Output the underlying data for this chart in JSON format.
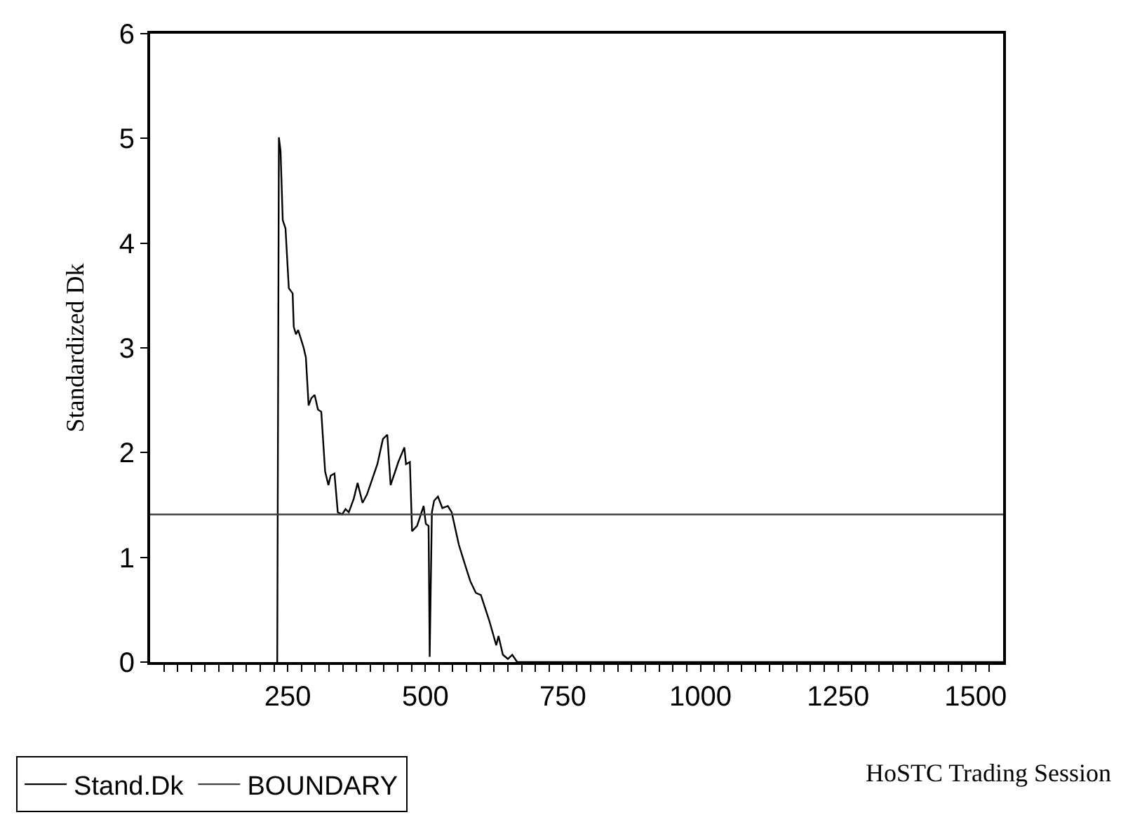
{
  "chart_data": {
    "type": "line",
    "xlabel": "HoSTC Trading Session",
    "ylabel": "Standardized Dk",
    "xlim": [
      0,
      1550
    ],
    "ylim": [
      0,
      6
    ],
    "yticks": [
      0,
      1,
      2,
      3,
      4,
      5,
      6
    ],
    "xticks": [
      {
        "value": 25,
        "label": null
      },
      {
        "value": 50,
        "label": null
      },
      {
        "value": 75,
        "label": null
      },
      {
        "value": 100,
        "label": null
      },
      {
        "value": 125,
        "label": null
      },
      {
        "value": 150,
        "label": null
      },
      {
        "value": 175,
        "label": null
      },
      {
        "value": 200,
        "label": null
      },
      {
        "value": 225,
        "label": null
      },
      250,
      {
        "value": 275,
        "label": null
      },
      {
        "value": 300,
        "label": null
      },
      {
        "value": 325,
        "label": null
      },
      {
        "value": 350,
        "label": null
      },
      {
        "value": 375,
        "label": null
      },
      {
        "value": 400,
        "label": null
      },
      {
        "value": 425,
        "label": null
      },
      {
        "value": 450,
        "label": null
      },
      {
        "value": 475,
        "label": null
      },
      500,
      {
        "value": 525,
        "label": null
      },
      {
        "value": 550,
        "label": null
      },
      {
        "value": 575,
        "label": null
      },
      {
        "value": 600,
        "label": null
      },
      {
        "value": 625,
        "label": null
      },
      {
        "value": 650,
        "label": null
      },
      {
        "value": 675,
        "label": null
      },
      {
        "value": 700,
        "label": null
      },
      {
        "value": 725,
        "label": null
      },
      750,
      {
        "value": 775,
        "label": null
      },
      {
        "value": 800,
        "label": null
      },
      {
        "value": 825,
        "label": null
      },
      {
        "value": 850,
        "label": null
      },
      {
        "value": 875,
        "label": null
      },
      {
        "value": 900,
        "label": null
      },
      {
        "value": 925,
        "label": null
      },
      {
        "value": 950,
        "label": null
      },
      {
        "value": 975,
        "label": null
      },
      1000,
      {
        "value": 1025,
        "label": null
      },
      {
        "value": 1050,
        "label": null
      },
      {
        "value": 1075,
        "label": null
      },
      {
        "value": 1100,
        "label": null
      },
      {
        "value": 1125,
        "label": null
      },
      {
        "value": 1150,
        "label": null
      },
      {
        "value": 1175,
        "label": null
      },
      {
        "value": 1200,
        "label": null
      },
      {
        "value": 1225,
        "label": null
      },
      1250,
      {
        "value": 1275,
        "label": null
      },
      {
        "value": 1300,
        "label": null
      },
      {
        "value": 1325,
        "label": null
      },
      {
        "value": 1350,
        "label": null
      },
      {
        "value": 1375,
        "label": null
      },
      {
        "value": 1400,
        "label": null
      },
      {
        "value": 1425,
        "label": null
      },
      {
        "value": 1450,
        "label": null
      },
      {
        "value": 1475,
        "label": null
      },
      1500,
      {
        "value": 1525,
        "label": null
      }
    ],
    "legend": "bottom left",
    "marker": "none",
    "line_style": "solid",
    "series": [
      {
        "name": "Stand.Dk",
        "color": "#000000",
        "x": [
          231,
          234,
          237,
          241,
          246,
          252,
          259,
          261,
          265,
          269,
          275,
          279,
          283,
          288,
          293,
          299,
          305,
          311,
          318,
          324,
          328,
          335,
          341,
          349,
          355,
          361,
          370,
          377,
          386,
          394,
          413,
          423,
          431,
          437,
          451,
          462,
          465,
          472,
          476,
          485,
          497,
          501,
          506,
          508,
          512,
          516,
          523,
          531,
          541,
          548,
          561,
          574,
          582,
          592,
          601,
          616,
          629,
          633,
          641,
          650,
          658,
          667,
          1550
        ],
        "values": [
          0,
          5.01,
          4.88,
          4.22,
          4.14,
          3.57,
          3.52,
          3.2,
          3.13,
          3.17,
          3.07,
          3.0,
          2.91,
          2.45,
          2.52,
          2.55,
          2.41,
          2.39,
          1.82,
          1.69,
          1.78,
          1.8,
          1.43,
          1.41,
          1.46,
          1.43,
          1.56,
          1.71,
          1.52,
          1.6,
          1.89,
          2.13,
          2.17,
          1.69,
          1.91,
          2.05,
          1.89,
          1.91,
          1.25,
          1.3,
          1.49,
          1.32,
          1.3,
          0.05,
          1.43,
          1.54,
          1.58,
          1.47,
          1.49,
          1.43,
          1.12,
          0.9,
          0.77,
          0.66,
          0.64,
          0.4,
          0.16,
          0.25,
          0.07,
          0.03,
          0.07,
          0,
          0
        ]
      },
      {
        "name": "BOUNDARY",
        "color": "#404040",
        "x": [
          0,
          1550
        ],
        "values": [
          1.41,
          1.41
        ]
      }
    ]
  }
}
